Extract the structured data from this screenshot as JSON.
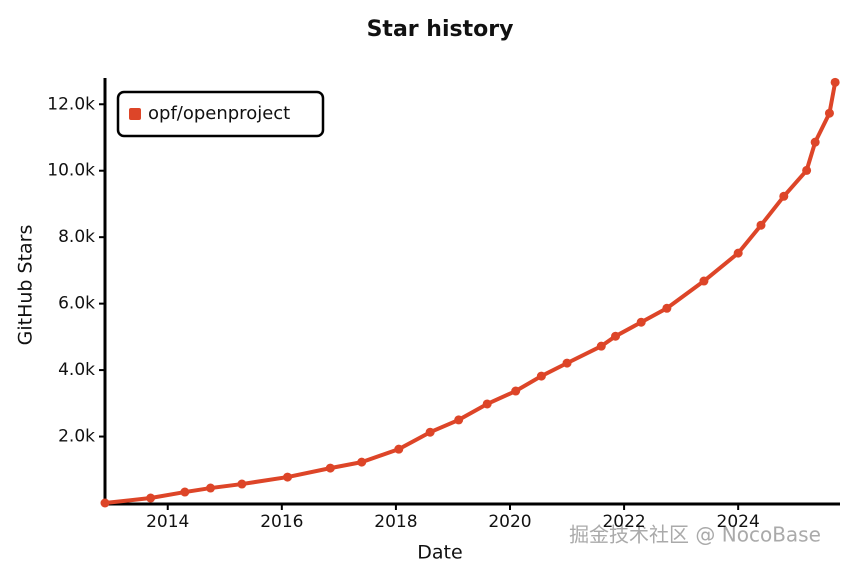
{
  "chart_data": {
    "type": "line",
    "title": "Star history",
    "x_label": "Date",
    "y_label": "GitHub Stars",
    "watermark": "掘金技术社区 @ NocoBase",
    "xlim": [
      2012.9,
      2025.75
    ],
    "xticks": [
      2014,
      2016,
      2018,
      2020,
      2022,
      2024
    ],
    "ylim": [
      0,
      12700
    ],
    "yticks": [
      {
        "value": 2000,
        "label": "2.0k"
      },
      {
        "value": 4000,
        "label": "4.0k"
      },
      {
        "value": 6000,
        "label": "6.0k"
      },
      {
        "value": 8000,
        "label": "8.0k"
      },
      {
        "value": 10000,
        "label": "10.0k"
      },
      {
        "value": 12000,
        "label": "12.0k"
      }
    ],
    "legend": "upper left",
    "series": [
      {
        "name": "opf/openproject",
        "color": "#dd4528",
        "x": [
          2012.9,
          2013.7,
          2014.3,
          2014.75,
          2015.3,
          2016.1,
          2016.85,
          2017.4,
          2018.05,
          2018.6,
          2019.1,
          2019.6,
          2020.1,
          2020.55,
          2021.0,
          2021.6,
          2021.85,
          2022.3,
          2022.75,
          2023.4,
          2024.0,
          2024.4,
          2024.8,
          2025.2,
          2025.35,
          2025.6,
          2025.7
        ],
        "values": [
          0,
          150,
          330,
          450,
          570,
          780,
          1050,
          1230,
          1620,
          2130,
          2500,
          2980,
          3370,
          3820,
          4210,
          4720,
          5020,
          5440,
          5860,
          6680,
          7520,
          8360,
          9230,
          10010,
          10860,
          11730,
          12660
        ]
      }
    ]
  }
}
